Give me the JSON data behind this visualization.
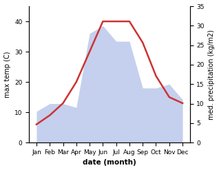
{
  "months": [
    "Jan",
    "Feb",
    "Mar",
    "Apr",
    "May",
    "Jun",
    "Jul",
    "Aug",
    "Sep",
    "Oct",
    "Nov",
    "Dec"
  ],
  "temp": [
    6,
    9,
    13,
    20,
    30,
    40,
    40,
    40,
    33,
    22,
    15,
    13
  ],
  "precip": [
    8,
    10,
    10,
    9,
    28,
    30,
    26,
    26,
    14,
    14,
    15,
    11
  ],
  "temp_color": "#cc3333",
  "precip_fill_color": "#c5d0ee",
  "xlabel": "date (month)",
  "ylabel_left": "max temp (C)",
  "ylabel_right": "med. precipitation (kg/m2)",
  "ylim_left": [
    0,
    45
  ],
  "ylim_right": [
    0,
    35
  ],
  "yticks_left": [
    0,
    10,
    20,
    30,
    40
  ],
  "yticks_right": [
    0,
    5,
    10,
    15,
    20,
    25,
    30,
    35
  ],
  "bg_color": "#ffffff",
  "temp_linewidth": 1.8,
  "fontsize_axis_label": 7,
  "fontsize_ticks": 6.5,
  "fontsize_xlabel": 7.5
}
